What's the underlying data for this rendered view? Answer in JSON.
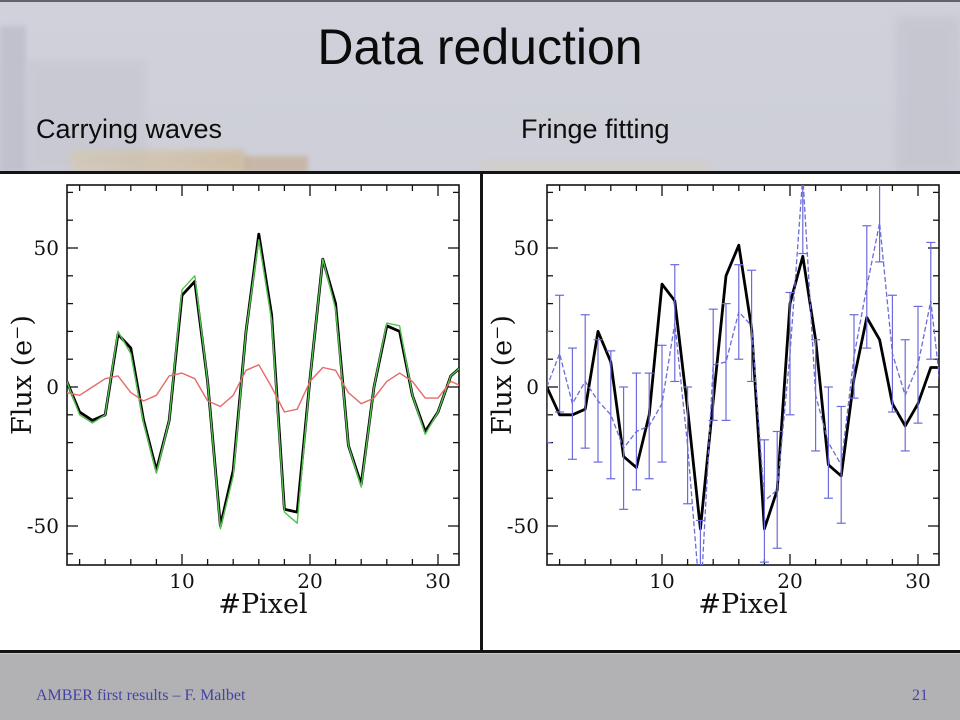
{
  "slide": {
    "title": "Data reduction",
    "left_panel_label": "Carrying waves",
    "right_panel_label": "Fringe fitting",
    "footer_credit": "AMBER first results – F. Malbet",
    "page_number": "21"
  },
  "colors": {
    "slide_background": "#cbccd5",
    "plot_background": "#ffffff",
    "frame_black": "#141414",
    "footer_band": "#b2b2b5",
    "footer_text": "#4343a6",
    "series_black": "#000000",
    "series_green": "#55c24f",
    "series_red": "#e66a6a",
    "series_blue": "#6b6bdc"
  },
  "chart_data": [
    {
      "type": "line",
      "panel_label": "Carrying waves",
      "xlabel": "#Pixel",
      "ylabel": "Flux (e⁻)",
      "x_range": [
        1,
        32
      ],
      "xlim": [
        1,
        31.6
      ],
      "ylim": [
        -64,
        72
      ],
      "grid": false,
      "xticks": [
        10,
        20,
        30
      ],
      "yticks": [
        {
          "v": -50,
          "label": "-50"
        },
        {
          "v": 0,
          "label": "0"
        },
        {
          "v": 50,
          "label": "50"
        }
      ],
      "x_minor_step": 2,
      "y_minor_step": 10,
      "series": [
        {
          "name": "interferogram-black",
          "color": "#000000",
          "width": 2.8,
          "dash": "",
          "values": [
            2,
            -9,
            -12,
            -10,
            19,
            14,
            -12,
            -30,
            -12,
            33,
            38,
            2,
            -50,
            -30,
            20,
            55,
            26,
            -44,
            -45,
            3,
            46,
            30,
            -21,
            -35,
            0,
            22,
            20,
            -3,
            -16,
            -9,
            4,
            8
          ]
        },
        {
          "name": "carrying-wave-green",
          "color": "#55c24f",
          "width": 1.4,
          "dash": "",
          "values": [
            2,
            -10,
            -13,
            -10,
            20,
            12,
            -13,
            -31,
            -12,
            35,
            40,
            2,
            -51,
            -32,
            20,
            53,
            24,
            -45,
            -49,
            3,
            46,
            28,
            -21,
            -36,
            0,
            23,
            22,
            -3,
            -17,
            -9,
            4,
            8
          ]
        },
        {
          "name": "carrying-wave-red",
          "color": "#e66a6a",
          "width": 1.4,
          "dash": "",
          "values": [
            -2,
            -3,
            0,
            3,
            4,
            -2,
            -5,
            -3,
            4,
            5,
            3,
            -5,
            -7,
            -3,
            6,
            8,
            0,
            -9,
            -8,
            2,
            7,
            6,
            -2,
            -6,
            -4,
            2,
            5,
            2,
            -4,
            -4,
            2,
            0
          ]
        }
      ]
    },
    {
      "type": "line",
      "panel_label": "Fringe fitting",
      "xlabel": "#Pixel",
      "ylabel": "Flux (e⁻)",
      "x_range": [
        1,
        32
      ],
      "xlim": [
        1,
        31.6
      ],
      "ylim": [
        -64,
        72
      ],
      "grid": false,
      "xticks": [
        10,
        20,
        30
      ],
      "yticks": [
        {
          "v": -50,
          "label": "-50"
        },
        {
          "v": 0,
          "label": "0"
        },
        {
          "v": 50,
          "label": "50"
        }
      ],
      "x_minor_step": 2,
      "y_minor_step": 10,
      "series": [
        {
          "name": "fitted-fringe-black",
          "color": "#000000",
          "width": 2.8,
          "dash": "",
          "values": [
            0,
            -10,
            -10,
            -8,
            20,
            9,
            -25,
            -29,
            -10,
            37,
            31,
            -8,
            -51,
            -5,
            40,
            51,
            21,
            -51,
            -37,
            30,
            47,
            17,
            -28,
            -32,
            3,
            25,
            17,
            -6,
            -14,
            -6,
            7,
            7
          ]
        },
        {
          "name": "measured-fringe-blue",
          "color": "#6b6bdc",
          "width": 1.3,
          "dash": "5,2.5",
          "error_cap": 9,
          "values": [
            0,
            12,
            -6,
            2,
            -5,
            -10,
            -22,
            -16,
            -14,
            -6,
            23,
            -21,
            -78,
            8,
            9,
            27,
            22,
            -41,
            -37,
            12,
            76,
            -3,
            -20,
            -28,
            11,
            36,
            59,
            12,
            -3,
            8,
            31,
            -10
          ],
          "errors": [
            20,
            21,
            20,
            24,
            22,
            23,
            22,
            21,
            19,
            21,
            21,
            21,
            30,
            20,
            21,
            17,
            20,
            22,
            21,
            22,
            28,
            20,
            20,
            21,
            15,
            22,
            14,
            21,
            20,
            21,
            21,
            20
          ]
        }
      ]
    }
  ]
}
